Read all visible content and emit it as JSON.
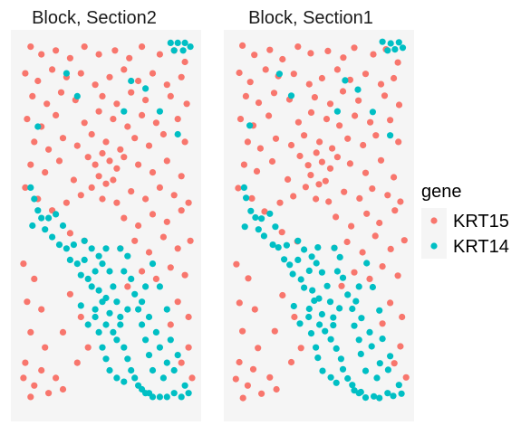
{
  "chart_data": {
    "type": "scatter",
    "facets": [
      {
        "title": "Block, Section2"
      },
      {
        "title": "Block, Section1"
      }
    ],
    "legend": {
      "title": "gene",
      "position": "right",
      "entries": [
        {
          "name": "KRT15",
          "color": "#F8766D"
        },
        {
          "name": "KRT14",
          "color": "#00BFC4"
        }
      ]
    },
    "panel_background": "#F5F5F5",
    "axes_visible": false,
    "grid": false,
    "xlim": [
      0,
      100
    ],
    "ylim": [
      0,
      100
    ],
    "series": [
      {
        "name": "KRT15",
        "color": "#F8766D",
        "points": [
          [
            8,
            97
          ],
          [
            14,
            95
          ],
          [
            22,
            96
          ],
          [
            30,
            94
          ],
          [
            38,
            97
          ],
          [
            46,
            95
          ],
          [
            55,
            96
          ],
          [
            63,
            94
          ],
          [
            70,
            97
          ],
          [
            80,
            95
          ],
          [
            88,
            96
          ],
          [
            94,
            93
          ],
          [
            5,
            90
          ],
          [
            12,
            88
          ],
          [
            20,
            91
          ],
          [
            28,
            89
          ],
          [
            36,
            90
          ],
          [
            44,
            87
          ],
          [
            52,
            89
          ],
          [
            60,
            91
          ],
          [
            68,
            88
          ],
          [
            76,
            90
          ],
          [
            84,
            87
          ],
          [
            92,
            89
          ],
          [
            9,
            84
          ],
          [
            17,
            82
          ],
          [
            25,
            85
          ],
          [
            33,
            83
          ],
          [
            48,
            84
          ],
          [
            56,
            82
          ],
          [
            64,
            85
          ],
          [
            72,
            83
          ],
          [
            86,
            84
          ],
          [
            95,
            82
          ],
          [
            6,
            78
          ],
          [
            14,
            76
          ],
          [
            22,
            79
          ],
          [
            38,
            77
          ],
          [
            46,
            80
          ],
          [
            54,
            78
          ],
          [
            62,
            76
          ],
          [
            70,
            79
          ],
          [
            78,
            77
          ],
          [
            90,
            78
          ],
          [
            10,
            72
          ],
          [
            18,
            70
          ],
          [
            26,
            73
          ],
          [
            34,
            71
          ],
          [
            42,
            74
          ],
          [
            50,
            72
          ],
          [
            58,
            70
          ],
          [
            66,
            73
          ],
          [
            74,
            71
          ],
          [
            82,
            74
          ],
          [
            94,
            72
          ],
          [
            40,
            68
          ],
          [
            44,
            66
          ],
          [
            48,
            69
          ],
          [
            52,
            67
          ],
          [
            56,
            65
          ],
          [
            46,
            63
          ],
          [
            50,
            61
          ],
          [
            42,
            60
          ],
          [
            54,
            62
          ],
          [
            60,
            68
          ],
          [
            68,
            66
          ],
          [
            76,
            64
          ],
          [
            84,
            67
          ],
          [
            92,
            63
          ],
          [
            8,
            66
          ],
          [
            16,
            64
          ],
          [
            24,
            67
          ],
          [
            32,
            62
          ],
          [
            36,
            58
          ],
          [
            48,
            57
          ],
          [
            56,
            56
          ],
          [
            64,
            59
          ],
          [
            72,
            57
          ],
          [
            80,
            60
          ],
          [
            88,
            58
          ],
          [
            96,
            56
          ],
          [
            5,
            60
          ],
          [
            12,
            57
          ],
          [
            20,
            54
          ],
          [
            28,
            56
          ],
          [
            60,
            52
          ],
          [
            68,
            50
          ],
          [
            76,
            53
          ],
          [
            84,
            51
          ],
          [
            92,
            54
          ],
          [
            30,
            48
          ],
          [
            38,
            46
          ],
          [
            58,
            44
          ],
          [
            66,
            46
          ],
          [
            74,
            43
          ],
          [
            82,
            47
          ],
          [
            90,
            44
          ],
          [
            97,
            46
          ],
          [
            70,
            38
          ],
          [
            78,
            36
          ],
          [
            86,
            39
          ],
          [
            94,
            37
          ],
          [
            62,
            34
          ],
          [
            90,
            30
          ],
          [
            96,
            26
          ],
          [
            86,
            24
          ],
          [
            4,
            40
          ],
          [
            10,
            36
          ],
          [
            6,
            30
          ],
          [
            14,
            28
          ],
          [
            8,
            22
          ],
          [
            16,
            18
          ],
          [
            5,
            14
          ],
          [
            4,
            10
          ],
          [
            10,
            8
          ],
          [
            14,
            12
          ],
          [
            18,
            6
          ],
          [
            22,
            10
          ],
          [
            8,
            5
          ],
          [
            26,
            7
          ],
          [
            96,
            18
          ],
          [
            92,
            14
          ],
          [
            98,
            10
          ],
          [
            30,
            32
          ],
          [
            36,
            26
          ],
          [
            26,
            22
          ],
          [
            40,
            18
          ],
          [
            34,
            14
          ]
        ]
      },
      {
        "name": "KRT14",
        "color": "#00BFC4",
        "points": [
          [
            86,
            98
          ],
          [
            90,
            98
          ],
          [
            94,
            98
          ],
          [
            97,
            97
          ],
          [
            88,
            96
          ],
          [
            93,
            96
          ],
          [
            28,
            90
          ],
          [
            64,
            88
          ],
          [
            72,
            86
          ],
          [
            60,
            80
          ],
          [
            12,
            76
          ],
          [
            80,
            80
          ],
          [
            34,
            84
          ],
          [
            90,
            74
          ],
          [
            8,
            60
          ],
          [
            10,
            57
          ],
          [
            12,
            54
          ],
          [
            14,
            52
          ],
          [
            9,
            50
          ],
          [
            16,
            49
          ],
          [
            20,
            47
          ],
          [
            18,
            52
          ],
          [
            22,
            53
          ],
          [
            26,
            50
          ],
          [
            24,
            45
          ],
          [
            28,
            44
          ],
          [
            32,
            45
          ],
          [
            30,
            41
          ],
          [
            34,
            40
          ],
          [
            38,
            41
          ],
          [
            36,
            37
          ],
          [
            40,
            36
          ],
          [
            44,
            38
          ],
          [
            42,
            34
          ],
          [
            46,
            33
          ],
          [
            48,
            30
          ],
          [
            50,
            31
          ],
          [
            44,
            28
          ],
          [
            52,
            27
          ],
          [
            50,
            24
          ],
          [
            54,
            22
          ],
          [
            58,
            24
          ],
          [
            56,
            20
          ],
          [
            60,
            18
          ],
          [
            62,
            15
          ],
          [
            64,
            12
          ],
          [
            66,
            10
          ],
          [
            68,
            8
          ],
          [
            70,
            7
          ],
          [
            72,
            6
          ],
          [
            74,
            6
          ],
          [
            76,
            5
          ],
          [
            80,
            5
          ],
          [
            84,
            5
          ],
          [
            88,
            6
          ],
          [
            92,
            5
          ],
          [
            96,
            6
          ],
          [
            94,
            8
          ],
          [
            46,
            22
          ],
          [
            48,
            18
          ],
          [
            50,
            15
          ],
          [
            52,
            12
          ],
          [
            56,
            10
          ],
          [
            60,
            9
          ],
          [
            44,
            26
          ],
          [
            40,
            24
          ],
          [
            36,
            29
          ],
          [
            58,
            44
          ],
          [
            62,
            42
          ],
          [
            60,
            38
          ],
          [
            64,
            36
          ],
          [
            66,
            32
          ],
          [
            68,
            28
          ],
          [
            70,
            24
          ],
          [
            72,
            20
          ],
          [
            74,
            16
          ],
          [
            76,
            12
          ],
          [
            54,
            34
          ],
          [
            52,
            38
          ],
          [
            56,
            30
          ],
          [
            62,
            28
          ],
          [
            58,
            26
          ],
          [
            70,
            30
          ],
          [
            74,
            26
          ],
          [
            78,
            22
          ],
          [
            80,
            18
          ],
          [
            46,
            42
          ],
          [
            48,
            40
          ],
          [
            42,
            44
          ],
          [
            38,
            46
          ],
          [
            50,
            44
          ],
          [
            80,
            34
          ],
          [
            76,
            40
          ],
          [
            84,
            28
          ],
          [
            72,
            34
          ],
          [
            86,
            20
          ],
          [
            84,
            14
          ],
          [
            88,
            12
          ],
          [
            90,
            16
          ],
          [
            82,
            10
          ]
        ]
      }
    ]
  }
}
